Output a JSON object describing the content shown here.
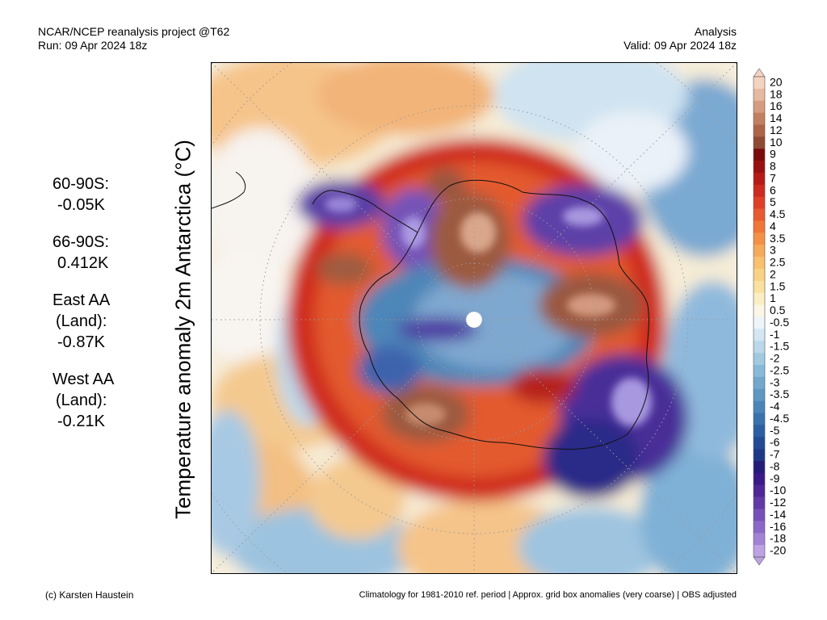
{
  "header": {
    "left_line1": "NCAR/NCEP reanalysis project @T62",
    "left_line2": "Run: 09 Apr 2024 18z",
    "right_line1": "Analysis",
    "right_line2": "Valid: 09 Apr 2024 18z"
  },
  "map": {
    "title": "Temperature anomaly 2m Antarctica (°C)",
    "projection": "south-polar-stereographic"
  },
  "stats": [
    {
      "label": "60-90S:",
      "value": "-0.05K"
    },
    {
      "label": "66-90S:",
      "value": "0.412K"
    },
    {
      "label": "East AA",
      "label2": "(Land):",
      "value": "-0.87K"
    },
    {
      "label": "West AA",
      "label2": "(Land):",
      "value": "-0.21K"
    }
  ],
  "colorbar": {
    "labels": [
      "20",
      "18",
      "16",
      "14",
      "12",
      "10",
      "9",
      "8",
      "7",
      "6",
      "5",
      "4.5",
      "4",
      "3.5",
      "3",
      "2.5",
      "2",
      "1.5",
      "1",
      "0.5",
      "-0.5",
      "-1",
      "-1.5",
      "-2",
      "-2.5",
      "-3",
      "-3.5",
      "-4",
      "-4.5",
      "-5",
      "-6",
      "-7",
      "-8",
      "-9",
      "-10",
      "-12",
      "-14",
      "-16",
      "-18",
      "-20"
    ],
    "colors": [
      "#f5d3c1",
      "#e7b9a0",
      "#d69c80",
      "#c28062",
      "#ad6548",
      "#8f4a33",
      "#7a0b0b",
      "#9a1010",
      "#b51a17",
      "#cc2a1e",
      "#de3f27",
      "#e85a30",
      "#ef7638",
      "#f39246",
      "#f6ab5a",
      "#f8c06f",
      "#f9d286",
      "#fae1a0",
      "#fbeec4",
      "#fbf6e6",
      "#edf4fa",
      "#d3e6f2",
      "#bad8ea",
      "#a1c9e1",
      "#89b9d8",
      "#73a8ce",
      "#5f97c3",
      "#4b85b8",
      "#3a72ad",
      "#2c5ea1",
      "#224b94",
      "#1c3886",
      "#251c7a",
      "#3a1a86",
      "#4f2696",
      "#623aa7",
      "#7650b8",
      "#8b68c7",
      "#a183d5",
      "#bda3e3"
    ]
  },
  "footer": {
    "left": "(c) Karsten Haustein",
    "right": "Climatology for 1981-2010 ref. period | Approx. grid box anomalies (very coarse) | OBS adjusted"
  }
}
